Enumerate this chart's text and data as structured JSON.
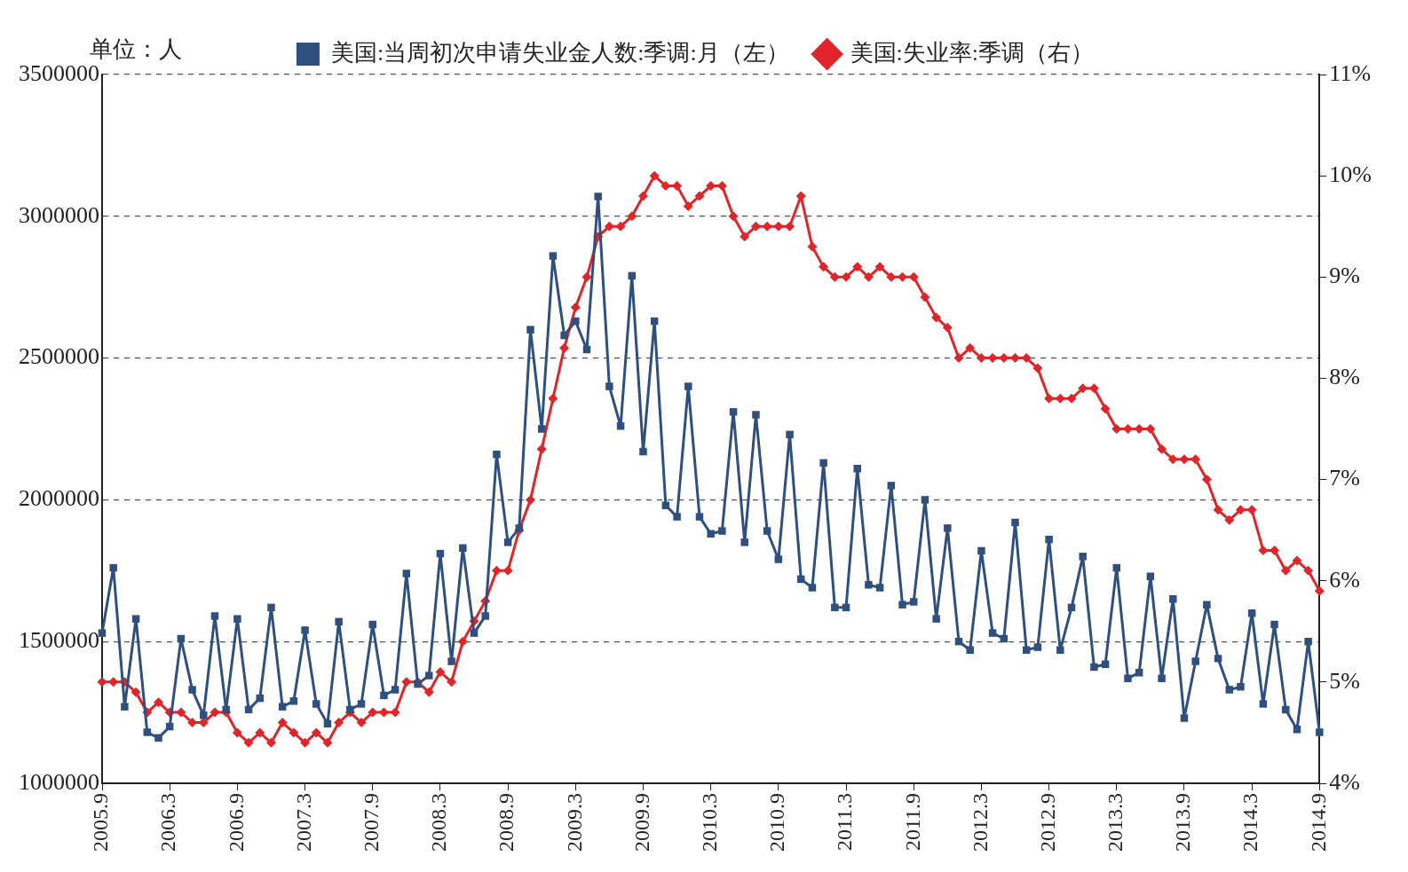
{
  "chart_data": {
    "type": "line",
    "ylabel": "单位：人",
    "categories": [
      "2005.9",
      null,
      null,
      null,
      null,
      null,
      "2006.3",
      null,
      null,
      null,
      null,
      null,
      "2006.9",
      null,
      null,
      null,
      null,
      null,
      "2007.3",
      null,
      null,
      null,
      null,
      null,
      "2007.9",
      null,
      null,
      null,
      null,
      null,
      "2008.3",
      null,
      null,
      null,
      null,
      null,
      "2008.9",
      null,
      null,
      null,
      null,
      null,
      "2009.3",
      null,
      null,
      null,
      null,
      null,
      "2009.9",
      null,
      null,
      null,
      null,
      null,
      "2010.3",
      null,
      null,
      null,
      null,
      null,
      "2010.9",
      null,
      null,
      null,
      null,
      null,
      "2011.3",
      null,
      null,
      null,
      null,
      null,
      "2011.9",
      null,
      null,
      null,
      null,
      null,
      "2012.3",
      null,
      null,
      null,
      null,
      null,
      "2012.9",
      null,
      null,
      null,
      null,
      null,
      "2013.3",
      null,
      null,
      null,
      null,
      null,
      "2013.9",
      null,
      null,
      null,
      null,
      null,
      "2014.3",
      null,
      null,
      null,
      null,
      null,
      "2014.9"
    ],
    "series": [
      {
        "name": "美国:当周初次申请失业金人数:季调:月（左）",
        "color": "#2f4f7f",
        "marker": "square",
        "values": [
          1530000,
          1760000,
          1270000,
          1580000,
          1180000,
          1160000,
          1200000,
          1510000,
          1330000,
          1240000,
          1590000,
          1260000,
          1580000,
          1260000,
          1300000,
          1620000,
          1270000,
          1290000,
          1540000,
          1280000,
          1210000,
          1570000,
          1260000,
          1280000,
          1560000,
          1310000,
          1330000,
          1740000,
          1350000,
          1380000,
          1810000,
          1430000,
          1830000,
          1530000,
          1590000,
          2160000,
          1850000,
          1900000,
          2600000,
          2250000,
          2860000,
          2580000,
          2630000,
          2530000,
          3070000,
          2400000,
          2260000,
          2790000,
          2170000,
          2630000,
          1980000,
          1940000,
          2400000,
          1940000,
          1880000,
          1890000,
          2310000,
          1850000,
          2300000,
          1890000,
          1790000,
          2230000,
          1720000,
          1690000,
          2130000,
          1620000,
          1620000,
          2110000,
          1700000,
          1690000,
          2050000,
          1630000,
          1640000,
          2000000,
          1580000,
          1900000,
          1500000,
          1470000,
          1820000,
          1530000,
          1510000,
          1920000,
          1470000,
          1480000,
          1860000,
          1470000,
          1620000,
          1800000,
          1410000,
          1420000,
          1760000,
          1370000,
          1390000,
          1730000,
          1370000,
          1650000,
          1230000,
          1430000,
          1630000,
          1440000,
          1330000,
          1340000,
          1600000,
          1280000,
          1560000,
          1260000,
          1190000,
          1500000,
          1180000
        ]
      },
      {
        "name": "美国:失业率:季调（右）",
        "color": "#e0252a",
        "marker": "diamond",
        "axis": "y2",
        "values": [
          5.0,
          5.0,
          5.0,
          4.9,
          4.7,
          4.8,
          4.7,
          4.7,
          4.6,
          4.6,
          4.7,
          4.7,
          4.5,
          4.4,
          4.5,
          4.4,
          4.6,
          4.5,
          4.4,
          4.5,
          4.4,
          4.6,
          4.7,
          4.6,
          4.7,
          4.7,
          4.7,
          5.0,
          5.0,
          4.9,
          5.1,
          5.0,
          5.4,
          5.6,
          5.8,
          6.1,
          6.1,
          6.5,
          6.8,
          7.3,
          7.8,
          8.3,
          8.7,
          9.0,
          9.4,
          9.5,
          9.5,
          9.6,
          9.8,
          10.0,
          9.9,
          9.9,
          9.7,
          9.8,
          9.9,
          9.9,
          9.6,
          9.4,
          9.5,
          9.5,
          9.5,
          9.5,
          9.8,
          9.3,
          9.1,
          9.0,
          9.0,
          9.1,
          9.0,
          9.1,
          9.0,
          9.0,
          9.0,
          8.8,
          8.6,
          8.5,
          8.2,
          8.3,
          8.2,
          8.2,
          8.2,
          8.2,
          8.2,
          8.1,
          7.8,
          7.8,
          7.8,
          7.9,
          7.9,
          7.7,
          7.5,
          7.5,
          7.5,
          7.5,
          7.3,
          7.2,
          7.2,
          7.2,
          7.0,
          6.7,
          6.6,
          6.7,
          6.7,
          6.3,
          6.3,
          6.1,
          6.2,
          6.1,
          5.9
        ]
      }
    ],
    "ylim": [
      1000000,
      3500000
    ],
    "yticks": [
      1000000,
      1500000,
      2000000,
      2500000,
      3000000,
      3500000
    ],
    "y2lim": [
      4,
      11
    ],
    "y2ticks": [
      {
        "value": 4,
        "label": "4%"
      },
      {
        "value": 5,
        "label": "5%"
      },
      {
        "value": 6,
        "label": "6%"
      },
      {
        "value": 7,
        "label": "7%"
      },
      {
        "value": 8,
        "label": "8%"
      },
      {
        "value": 9,
        "label": "9%"
      },
      {
        "value": 10,
        "label": "10%"
      },
      {
        "value": 11,
        "label": "11%"
      }
    ],
    "grid": "y",
    "legend": "top"
  }
}
